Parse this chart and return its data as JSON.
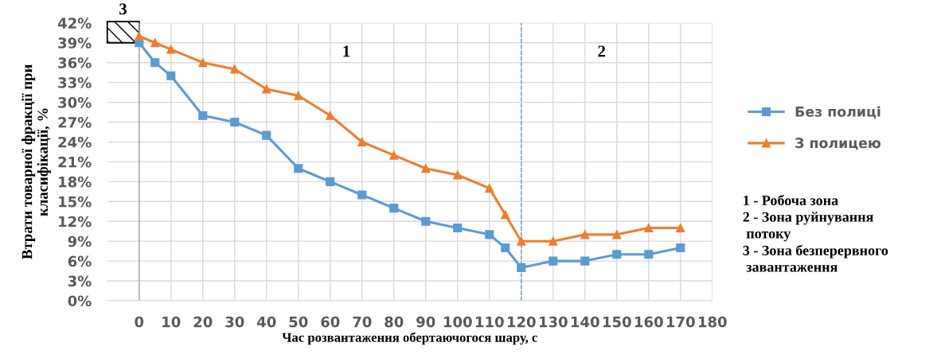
{
  "chart_data": {
    "type": "line",
    "xlabel": "Час розвантаження обертаючогося шару, с",
    "ylabel": "Втрати товарної фракції при\nкласифікації, %",
    "x": [
      0,
      5,
      10,
      20,
      30,
      40,
      50,
      60,
      70,
      80,
      90,
      100,
      110,
      115,
      120,
      130,
      140,
      150,
      160,
      170
    ],
    "series": [
      {
        "name": "Без полиці",
        "color": "#5b9bd5",
        "marker": "square",
        "values": [
          39,
          36,
          34,
          28,
          27,
          25,
          20,
          18,
          16,
          14,
          12,
          11,
          10,
          8,
          5,
          6,
          6,
          7,
          7,
          8
        ]
      },
      {
        "name": "З полицею",
        "color": "#ed7d31",
        "marker": "triangle",
        "values": [
          40,
          39,
          38,
          36,
          35,
          32,
          31,
          28,
          24,
          22,
          20,
          19,
          17,
          13,
          9,
          9,
          10,
          10,
          11,
          11
        ]
      }
    ],
    "xlim": [
      -10,
      180
    ],
    "xticks": [
      0,
      10,
      20,
      30,
      40,
      50,
      60,
      70,
      80,
      90,
      100,
      110,
      120,
      130,
      140,
      150,
      160,
      170,
      180
    ],
    "ylim": [
      0,
      42
    ],
    "yticks": [
      {
        "value": 0,
        "label": "0%"
      },
      {
        "value": 3,
        "label": "3%"
      },
      {
        "value": 6,
        "label": "6%"
      },
      {
        "value": 9,
        "label": "9%"
      },
      {
        "value": 12,
        "label": "12%"
      },
      {
        "value": 15,
        "label": "15%"
      },
      {
        "value": 18,
        "label": "18%"
      },
      {
        "value": 21,
        "label": "21%"
      },
      {
        "value": 24,
        "label": "24%"
      },
      {
        "value": 27,
        "label": "27%"
      },
      {
        "value": 30,
        "label": "30%"
      },
      {
        "value": 33,
        "label": "33%"
      },
      {
        "value": 36,
        "label": "36%"
      },
      {
        "value": 39,
        "label": "39%"
      },
      {
        "value": 42,
        "label": "42%"
      }
    ],
    "ref_lines": [
      {
        "axis": "x",
        "value": 0,
        "color": "#a6a6a6",
        "line_style": "solid"
      },
      {
        "axis": "x",
        "value": 120,
        "color": "#5b9bd5",
        "line_style": "dashed"
      }
    ],
    "annotations": [
      "1",
      "2",
      "3",
      "1 - Робоча зона",
      "2 - Зона руйнування\n потоку",
      "3 - Зона безперервного\n завантаження"
    ],
    "grid": true,
    "legend": "right",
    "line_style": "solid"
  }
}
